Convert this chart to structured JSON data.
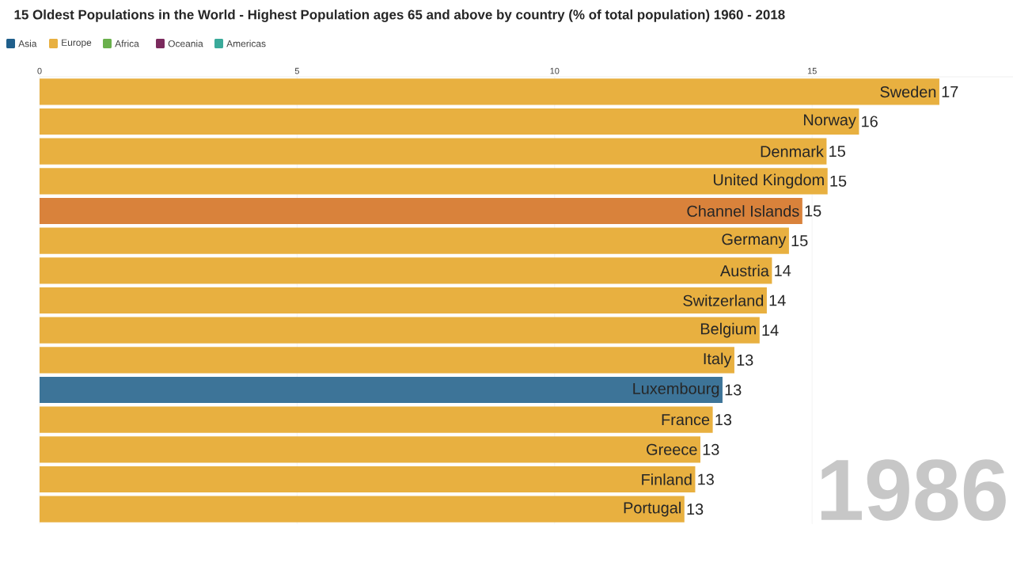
{
  "chart_data": {
    "type": "bar",
    "orientation": "horizontal",
    "title": "15 Oldest Populations in the World - Highest Population ages 65 and above by country (% of total population) 1960 - 2018",
    "categories": [
      "Sweden",
      "Norway",
      "Denmark",
      "United Kingdom",
      "Channel Islands",
      "Germany",
      "Austria",
      "Switzerland",
      "Belgium",
      "Italy",
      "Luxembourg",
      "France",
      "Greece",
      "Finland",
      "Portugal"
    ],
    "series": [
      {
        "name": "Asia",
        "color": "#1f5f8b",
        "values": [
          null,
          null,
          null,
          null,
          null,
          null,
          null,
          null,
          null,
          null,
          null,
          null,
          null,
          null,
          null
        ]
      },
      {
        "name": "Europe",
        "color": "#e8b040",
        "values": [
          17.47,
          15.91,
          15.28,
          15.3,
          14.81,
          14.55,
          14.22,
          14.12,
          13.98,
          13.49,
          13.26,
          13.07,
          12.83,
          12.73,
          12.52
        ],
        "colors": [
          "#e8b040",
          "#e8b040",
          "#e8b040",
          "#e8b040",
          "#d9823b",
          "#e8b040",
          "#e8b040",
          "#e8b040",
          "#e8b040",
          "#e8b040",
          "#3d7498",
          "#e8b040",
          "#e8b040",
          "#e8b040",
          "#e8b040"
        ],
        "value_labels": [
          "17",
          "16",
          "15",
          "15",
          "15",
          "15",
          "14",
          "14",
          "14",
          "13",
          "13",
          "13",
          "13",
          "13",
          "13"
        ]
      },
      {
        "name": "Africa",
        "color": "#6ab04c",
        "values": [
          null,
          null,
          null,
          null,
          null,
          null,
          null,
          null,
          null,
          null,
          null,
          null,
          null,
          null,
          null
        ]
      },
      {
        "name": "Oceania",
        "color": "#7b2a5d",
        "values": [
          null,
          null,
          null,
          null,
          null,
          null,
          null,
          null,
          null,
          null,
          null,
          null,
          null,
          null,
          null
        ]
      },
      {
        "name": "Americas",
        "color": "#3aaa9a",
        "values": [
          null,
          null,
          null,
          null,
          null,
          null,
          null,
          null,
          null,
          null,
          null,
          null,
          null,
          null,
          null
        ]
      }
    ],
    "xlim": [
      0,
      18.9
    ],
    "xticks": [
      0,
      5,
      10,
      15
    ],
    "grid": "x",
    "legend": "top left",
    "annotations": [
      "1986"
    ]
  }
}
